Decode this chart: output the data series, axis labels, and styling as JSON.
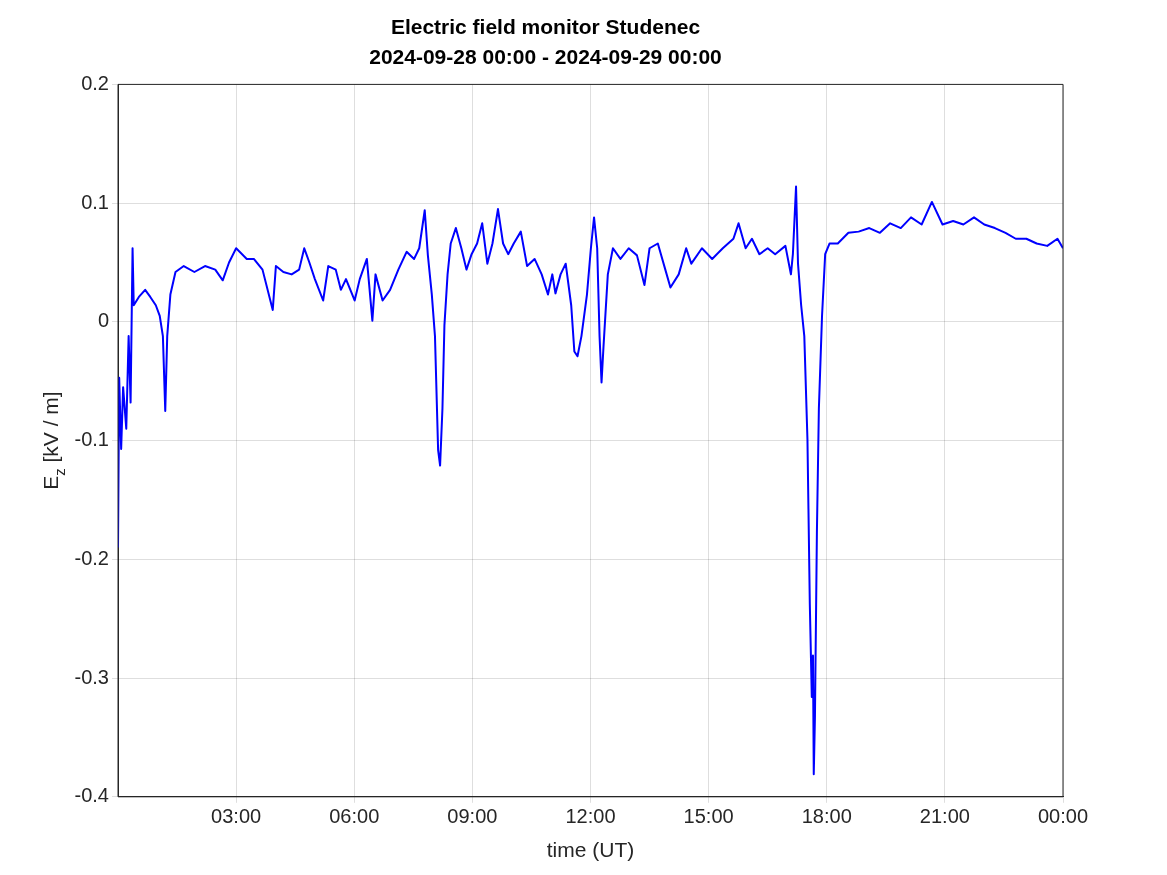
{
  "chart_data": {
    "type": "line",
    "title": "Electric field monitor Studenec",
    "subtitle": "2024-09-28 00:00 - 2024-09-29 00:00",
    "xlabel": "time (UT)",
    "ylabel": "E$_{z}$ [kV / m]",
    "xlim": [
      0,
      24
    ],
    "xticks": [
      {
        "value": 3,
        "label": "03:00"
      },
      {
        "value": 6,
        "label": "06:00"
      },
      {
        "value": 9,
        "label": "09:00"
      },
      {
        "value": 12,
        "label": "12:00"
      },
      {
        "value": 15,
        "label": "15:00"
      },
      {
        "value": 18,
        "label": "18:00"
      },
      {
        "value": 21,
        "label": "21:00"
      },
      {
        "value": 24,
        "label": "00:00"
      }
    ],
    "ylim": [
      -0.4,
      0.2
    ],
    "yticks": [
      -0.4,
      -0.3,
      -0.2,
      -0.1,
      0,
      0.1,
      0.2
    ],
    "grid": true,
    "legend": false,
    "marker": "none",
    "line_style": "solid",
    "x": [
      0,
      0.03,
      0.08,
      0.13,
      0.21,
      0.27,
      0.32,
      0.37,
      0.4,
      0.53,
      0.69,
      0.82,
      0.96,
      1.06,
      1.14,
      1.2,
      1.25,
      1.33,
      1.46,
      1.67,
      1.94,
      2.21,
      2.47,
      2.66,
      2.82,
      3.0,
      3.27,
      3.45,
      3.67,
      3.93,
      4.01,
      4.2,
      4.41,
      4.6,
      4.73,
      4.86,
      5.0,
      5.21,
      5.34,
      5.53,
      5.66,
      5.79,
      6.01,
      6.14,
      6.32,
      6.46,
      6.54,
      6.72,
      6.91,
      7.12,
      7.33,
      7.52,
      7.65,
      7.79,
      7.87,
      7.97,
      8.05,
      8.13,
      8.18,
      8.24,
      8.29,
      8.37,
      8.45,
      8.58,
      8.72,
      8.85,
      8.98,
      9.12,
      9.25,
      9.38,
      9.51,
      9.65,
      9.78,
      9.91,
      10.05,
      10.23,
      10.39,
      10.58,
      10.76,
      10.92,
      11.03,
      11.11,
      11.24,
      11.37,
      11.51,
      11.59,
      11.67,
      11.77,
      11.91,
      12.01,
      12.09,
      12.17,
      12.23,
      12.28,
      12.33,
      12.44,
      12.57,
      12.76,
      12.97,
      13.18,
      13.37,
      13.5,
      13.71,
      13.9,
      14.03,
      14.24,
      14.43,
      14.56,
      14.83,
      15.09,
      15.36,
      15.63,
      15.76,
      15.94,
      16.1,
      16.29,
      16.5,
      16.69,
      16.95,
      17.09,
      17.14,
      17.22,
      17.27,
      17.35,
      17.43,
      17.51,
      17.57,
      17.62,
      17.65,
      17.67,
      17.7,
      17.75,
      17.8,
      17.88,
      17.96,
      18.07,
      18.28,
      18.55,
      18.81,
      19.08,
      19.35,
      19.61,
      19.88,
      20.14,
      20.41,
      20.67,
      20.94,
      21.21,
      21.47,
      21.74,
      22.0,
      22.27,
      22.54,
      22.8,
      23.07,
      23.33,
      23.6,
      23.86,
      24.0
    ],
    "series": [
      {
        "color": "#0000ff",
        "values": [
          -0.19,
          -0.047,
          -0.107,
          -0.055,
          -0.09,
          -0.012,
          -0.068,
          0.062,
          0.014,
          0.021,
          0.027,
          0.021,
          0.014,
          0.005,
          -0.012,
          -0.075,
          -0.012,
          0.023,
          0.042,
          0.047,
          0.042,
          0.047,
          0.044,
          0.035,
          0.05,
          0.062,
          0.053,
          0.053,
          0.044,
          0.01,
          0.047,
          0.042,
          0.04,
          0.044,
          0.062,
          0.05,
          0.036,
          0.018,
          0.047,
          0.044,
          0.027,
          0.036,
          0.018,
          0.036,
          0.053,
          0.001,
          0.04,
          0.018,
          0.027,
          0.044,
          0.059,
          0.053,
          0.062,
          0.094,
          0.056,
          0.023,
          -0.012,
          -0.108,
          -0.121,
          -0.073,
          -0.003,
          0.04,
          0.066,
          0.079,
          0.062,
          0.044,
          0.057,
          0.066,
          0.083,
          0.049,
          0.066,
          0.095,
          0.066,
          0.057,
          0.066,
          0.076,
          0.047,
          0.053,
          0.04,
          0.023,
          0.04,
          0.024,
          0.04,
          0.049,
          0.014,
          -0.025,
          -0.029,
          -0.012,
          0.023,
          0.062,
          0.088,
          0.062,
          -0.012,
          -0.051,
          -0.021,
          0.04,
          0.062,
          0.053,
          0.062,
          0.056,
          0.031,
          0.062,
          0.066,
          0.044,
          0.029,
          0.04,
          0.062,
          0.049,
          0.062,
          0.053,
          0.062,
          0.07,
          0.083,
          0.062,
          0.07,
          0.057,
          0.062,
          0.057,
          0.064,
          0.04,
          0.057,
          0.114,
          0.049,
          0.014,
          -0.012,
          -0.099,
          -0.238,
          -0.316,
          -0.281,
          -0.381,
          -0.333,
          -0.177,
          -0.073,
          0.005,
          0.057,
          0.066,
          0.066,
          0.075,
          0.076,
          0.079,
          0.075,
          0.083,
          0.079,
          0.088,
          0.082,
          0.101,
          0.082,
          0.085,
          0.082,
          0.088,
          0.082,
          0.079,
          0.075,
          0.07,
          0.07,
          0.066,
          0.064,
          0.07,
          0.062
        ]
      }
    ]
  }
}
